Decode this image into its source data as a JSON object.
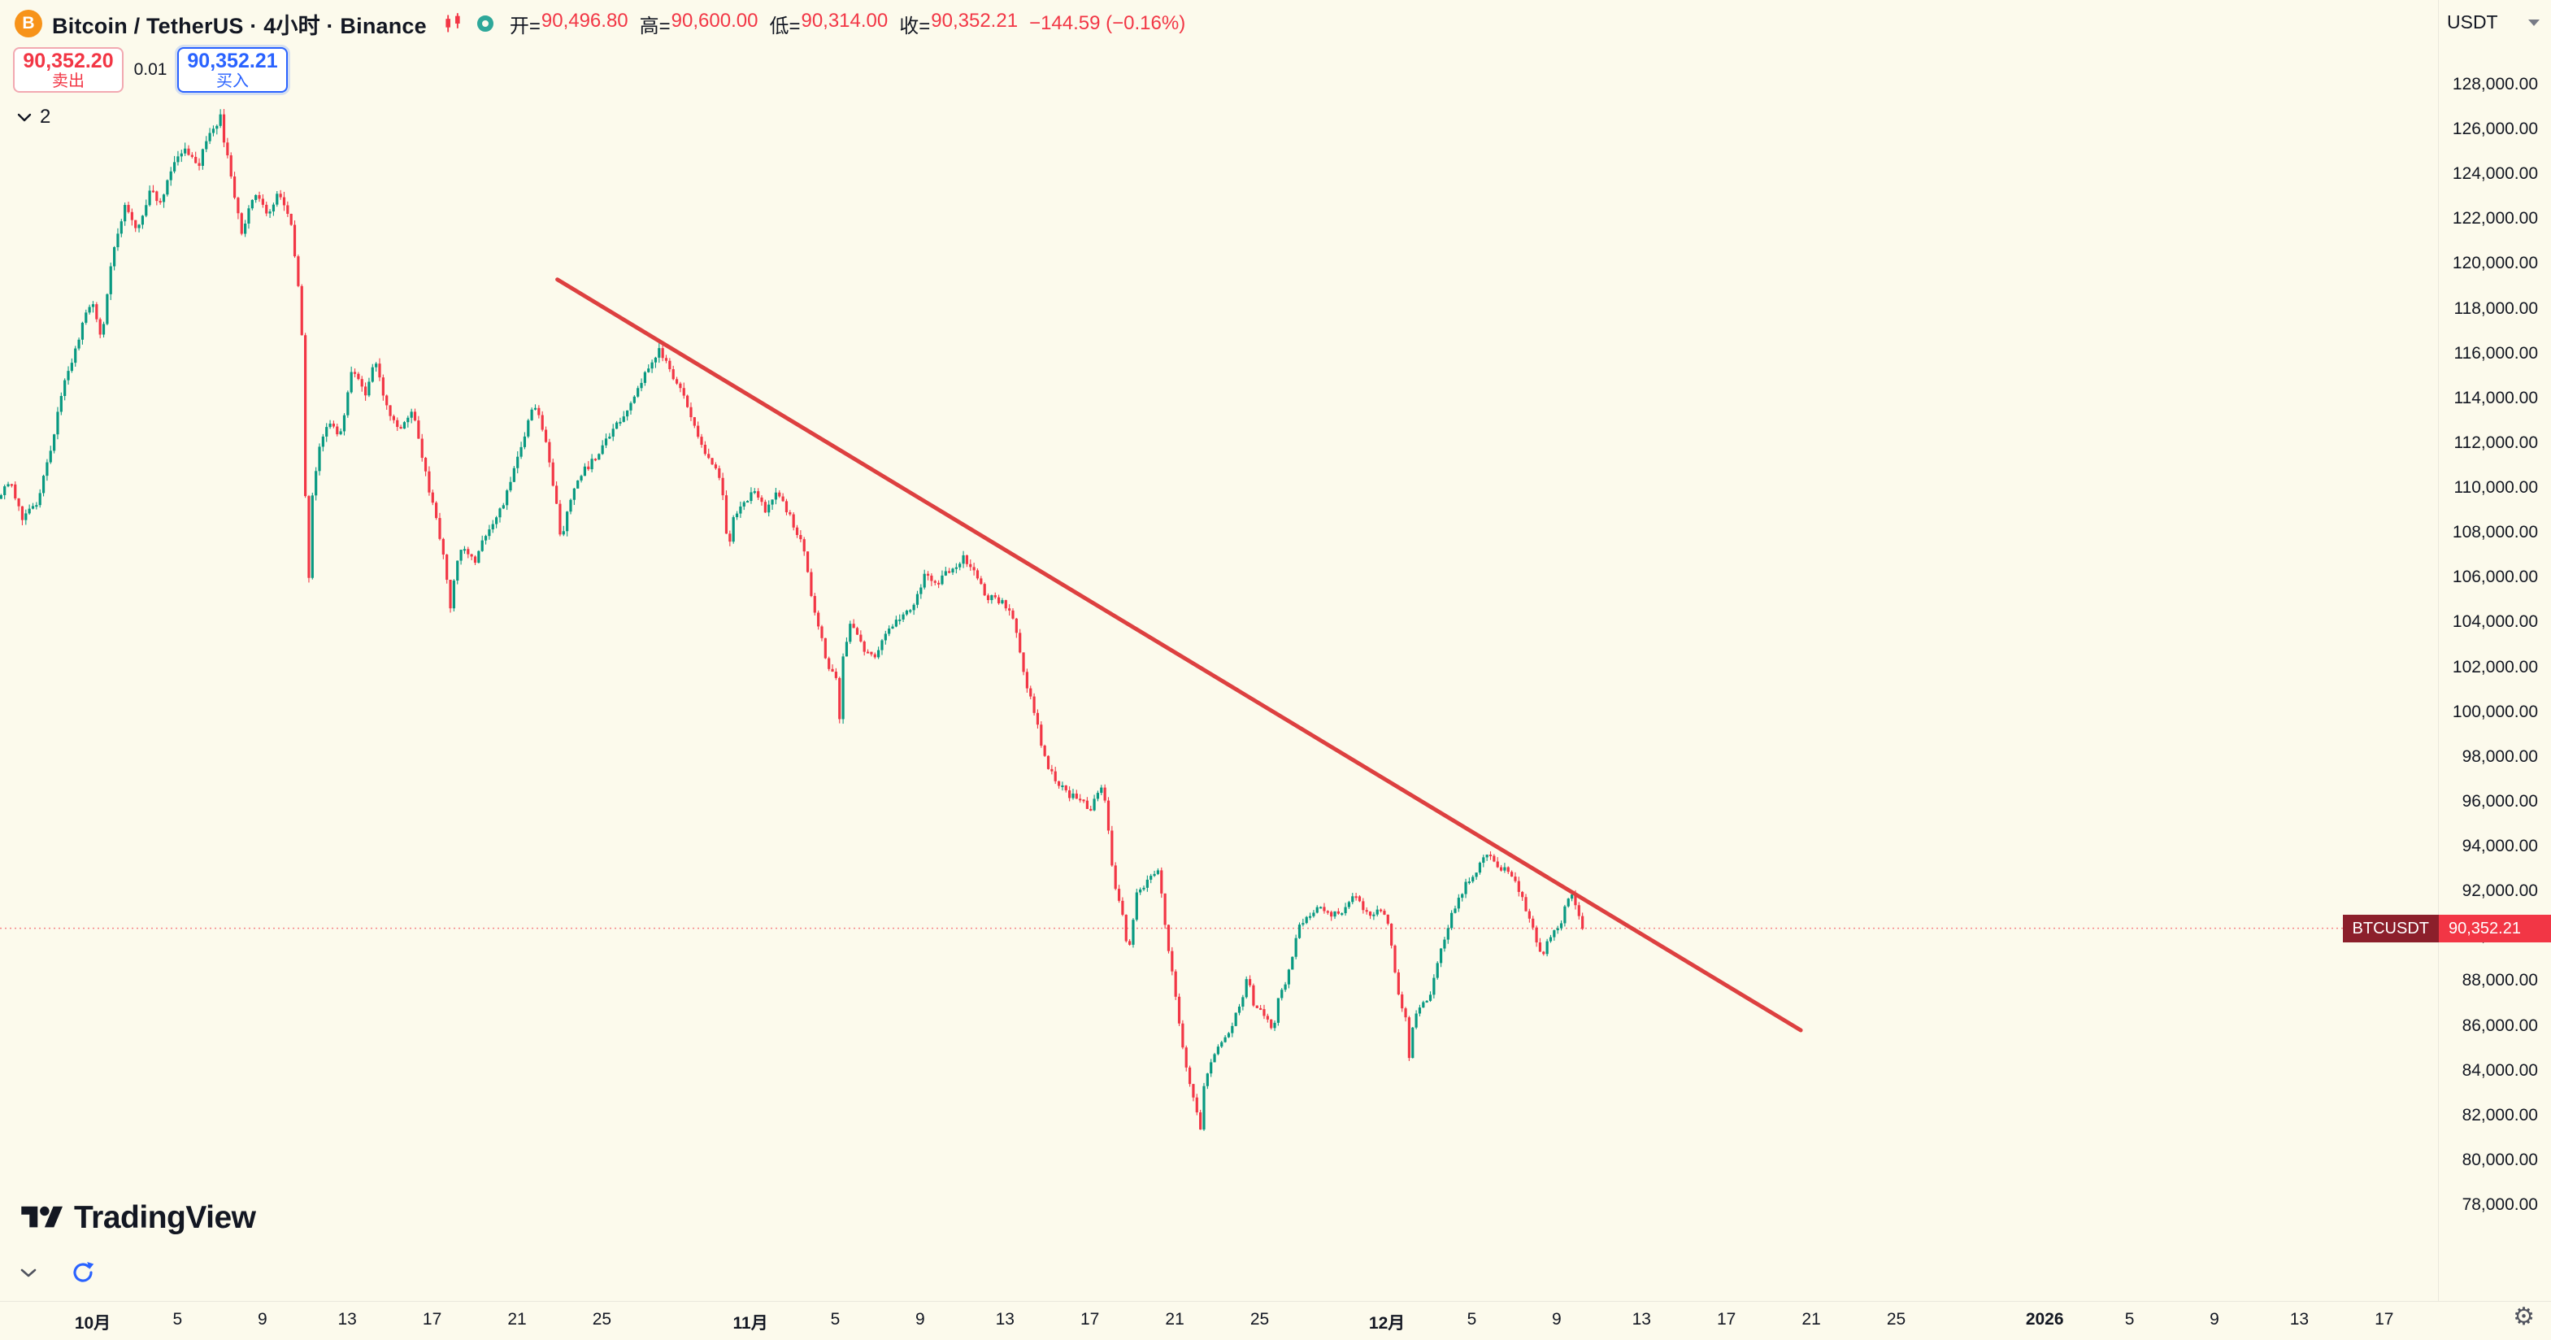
{
  "header": {
    "title": "Bitcoin / TetherUS · 4小时 · Binance",
    "ohlc": {
      "open_label": "开=",
      "open": "90,496.80",
      "high_label": "高=",
      "high": "90,600.00",
      "low_label": "低=",
      "low": "90,314.00",
      "close_label": "收=",
      "close": "90,352.21",
      "change": "−144.59 (−0.16%)"
    },
    "currency": "USDT"
  },
  "order_panel": {
    "sell_price": "90,352.20",
    "sell_label": "卖出",
    "spread": "0.01",
    "buy_price": "90,352.21",
    "buy_label": "买入"
  },
  "tree_toggle": {
    "count": "2"
  },
  "watermark": {
    "brand": "TradingView"
  },
  "price_label": {
    "symbol": "BTCUSDT",
    "price": "90,352.21"
  },
  "chart_data": {
    "type": "candlestick",
    "symbol": "BTCUSDT",
    "interval": "4小时",
    "exchange": "Binance",
    "last_price": 90352.21,
    "open": 90496.8,
    "high": 90600.0,
    "low": 90314.0,
    "close": 90352.21,
    "colors": {
      "up": "#089981",
      "down": "#F23645",
      "trend": "#DD4040",
      "last_line": "#F23645",
      "buy": "#2962FF",
      "sell": "#F23645"
    },
    "price_axis": {
      "min": 78000,
      "max": 128000,
      "step": 2000,
      "ticks": [
        {
          "value": 128000,
          "label": "128,000.00"
        },
        {
          "value": 126000,
          "label": "126,000.00"
        },
        {
          "value": 124000,
          "label": "124,000.00"
        },
        {
          "value": 122000,
          "label": "122,000.00"
        },
        {
          "value": 120000,
          "label": "120,000.00"
        },
        {
          "value": 118000,
          "label": "118,000.00"
        },
        {
          "value": 116000,
          "label": "116,000.00"
        },
        {
          "value": 114000,
          "label": "114,000.00"
        },
        {
          "value": 112000,
          "label": "112,000.00"
        },
        {
          "value": 110000,
          "label": "110,000.00"
        },
        {
          "value": 108000,
          "label": "108,000.00"
        },
        {
          "value": 106000,
          "label": "106,000.00"
        },
        {
          "value": 104000,
          "label": "104,000.00"
        },
        {
          "value": 102000,
          "label": "102,000.00"
        },
        {
          "value": 100000,
          "label": "100,000.00"
        },
        {
          "value": 98000,
          "label": "98,000.00"
        },
        {
          "value": 96000,
          "label": "96,000.00"
        },
        {
          "value": 94000,
          "label": "94,000.00"
        },
        {
          "value": 92000,
          "label": "92,000.00"
        },
        {
          "value": 90000,
          "label": "90,000.00"
        },
        {
          "value": 88000,
          "label": "88,000.00"
        },
        {
          "value": 86000,
          "label": "86,000.00"
        },
        {
          "value": 84000,
          "label": "84,000.00"
        },
        {
          "value": 82000,
          "label": "82,000.00"
        },
        {
          "value": 80000,
          "label": "80,000.00"
        },
        {
          "value": 78000,
          "label": "78,000.00"
        }
      ]
    },
    "time_axis": {
      "ticks": [
        {
          "label": "10月",
          "day": 0,
          "bold": true
        },
        {
          "label": "5",
          "day": 4
        },
        {
          "label": "9",
          "day": 8
        },
        {
          "label": "13",
          "day": 12
        },
        {
          "label": "17",
          "day": 16
        },
        {
          "label": "21",
          "day": 20
        },
        {
          "label": "25",
          "day": 24
        },
        {
          "label": "11月",
          "day": 31,
          "bold": true
        },
        {
          "label": "5",
          "day": 35
        },
        {
          "label": "9",
          "day": 39
        },
        {
          "label": "13",
          "day": 43
        },
        {
          "label": "17",
          "day": 47
        },
        {
          "label": "21",
          "day": 51
        },
        {
          "label": "25",
          "day": 55
        },
        {
          "label": "12月",
          "day": 61,
          "bold": true
        },
        {
          "label": "5",
          "day": 65
        },
        {
          "label": "9",
          "day": 69
        },
        {
          "label": "13",
          "day": 73
        },
        {
          "label": "17",
          "day": 77
        },
        {
          "label": "21",
          "day": 81
        },
        {
          "label": "25",
          "day": 85
        },
        {
          "label": "2026",
          "day": 92,
          "bold": true
        },
        {
          "label": "5",
          "day": 96
        },
        {
          "label": "9",
          "day": 100
        },
        {
          "label": "13",
          "day": 104
        },
        {
          "label": "17",
          "day": 108
        }
      ]
    },
    "day_range": [
      -4.4,
      70.3
    ],
    "candles_per_day": 6,
    "trend_line": {
      "from": [
        21.9,
        119300
      ],
      "to": [
        80.5,
        85800
      ]
    },
    "waypoints": [
      [
        -4.4,
        109600
      ],
      [
        -3.8,
        110400
      ],
      [
        -3.2,
        108600
      ],
      [
        -2.5,
        109300
      ],
      [
        -1.9,
        111800
      ],
      [
        -1.2,
        114800
      ],
      [
        -0.5,
        116900
      ],
      [
        0,
        118400
      ],
      [
        0.5,
        116800
      ],
      [
        1.0,
        120200
      ],
      [
        1.6,
        122600
      ],
      [
        2.2,
        121300
      ],
      [
        2.8,
        123500
      ],
      [
        3.3,
        122600
      ],
      [
        3.9,
        124600
      ],
      [
        4.4,
        125300
      ],
      [
        5.0,
        124200
      ],
      [
        5.6,
        125900
      ],
      [
        6.1,
        126500
      ],
      [
        6.6,
        123800
      ],
      [
        7.1,
        121400
      ],
      [
        7.7,
        123300
      ],
      [
        8.3,
        122200
      ],
      [
        8.8,
        123100
      ],
      [
        9.4,
        121900
      ],
      [
        9.9,
        118200
      ],
      [
        10.05,
        113500
      ],
      [
        10.2,
        103200
      ],
      [
        10.35,
        108800
      ],
      [
        10.7,
        111500
      ],
      [
        11.2,
        113200
      ],
      [
        11.7,
        112000
      ],
      [
        12.3,
        115400
      ],
      [
        12.9,
        114100
      ],
      [
        13.4,
        115800
      ],
      [
        14.0,
        113400
      ],
      [
        14.6,
        112600
      ],
      [
        15.2,
        113500
      ],
      [
        15.7,
        110900
      ],
      [
        16.3,
        108400
      ],
      [
        16.85,
        105700
      ],
      [
        17.0,
        104100
      ],
      [
        17.15,
        106500
      ],
      [
        17.5,
        107200
      ],
      [
        18.1,
        106700
      ],
      [
        18.6,
        108000
      ],
      [
        19.2,
        108700
      ],
      [
        19.8,
        110400
      ],
      [
        20.3,
        111900
      ],
      [
        20.9,
        113900
      ],
      [
        21.5,
        111700
      ],
      [
        22.0,
        108800
      ],
      [
        22.15,
        107400
      ],
      [
        22.6,
        109600
      ],
      [
        23.2,
        110800
      ],
      [
        23.8,
        111300
      ],
      [
        24.4,
        112400
      ],
      [
        25.1,
        113300
      ],
      [
        25.7,
        114300
      ],
      [
        26.3,
        115300
      ],
      [
        26.8,
        116200
      ],
      [
        27.4,
        114900
      ],
      [
        27.9,
        114200
      ],
      [
        28.4,
        113000
      ],
      [
        29.0,
        111400
      ],
      [
        29.7,
        110400
      ],
      [
        30.05,
        107000
      ],
      [
        30.2,
        108500
      ],
      [
        30.7,
        109200
      ],
      [
        31.2,
        109800
      ],
      [
        31.8,
        109000
      ],
      [
        32.4,
        109900
      ],
      [
        33.0,
        108600
      ],
      [
        33.6,
        107200
      ],
      [
        34.1,
        104500
      ],
      [
        34.7,
        102200
      ],
      [
        35.15,
        101300
      ],
      [
        35.3,
        99400
      ],
      [
        35.45,
        102600
      ],
      [
        35.8,
        103900
      ],
      [
        36.3,
        103000
      ],
      [
        36.9,
        102300
      ],
      [
        37.5,
        103500
      ],
      [
        38.1,
        104200
      ],
      [
        38.7,
        104700
      ],
      [
        39.3,
        106100
      ],
      [
        39.9,
        105800
      ],
      [
        40.5,
        106300
      ],
      [
        41.1,
        106900
      ],
      [
        41.7,
        106200
      ],
      [
        42.2,
        105100
      ],
      [
        42.8,
        105000
      ],
      [
        43.4,
        104500
      ],
      [
        43.9,
        102000
      ],
      [
        44.4,
        100200
      ],
      [
        45.0,
        97800
      ],
      [
        45.5,
        96900
      ],
      [
        46.1,
        96300
      ],
      [
        46.6,
        96200
      ],
      [
        47.1,
        95600
      ],
      [
        47.7,
        96800
      ],
      [
        48.2,
        92600
      ],
      [
        48.7,
        90600
      ],
      [
        48.85,
        89000
      ],
      [
        49.3,
        91900
      ],
      [
        49.8,
        92400
      ],
      [
        50.3,
        92900
      ],
      [
        50.7,
        90000
      ],
      [
        51.2,
        86800
      ],
      [
        51.7,
        83600
      ],
      [
        52.1,
        82300
      ],
      [
        52.25,
        80900
      ],
      [
        52.45,
        83200
      ],
      [
        52.7,
        84300
      ],
      [
        53.2,
        85200
      ],
      [
        53.7,
        85900
      ],
      [
        54.3,
        87300
      ],
      [
        54.5,
        88300
      ],
      [
        54.8,
        86900
      ],
      [
        55.3,
        86500
      ],
      [
        55.75,
        85800
      ],
      [
        55.95,
        87300
      ],
      [
        56.4,
        88100
      ],
      [
        56.9,
        90300
      ],
      [
        57.5,
        91000
      ],
      [
        58.0,
        91300
      ],
      [
        58.5,
        90900
      ],
      [
        59.1,
        91200
      ],
      [
        59.6,
        91800
      ],
      [
        60.2,
        90900
      ],
      [
        60.7,
        91100
      ],
      [
        61.1,
        90800
      ],
      [
        61.6,
        87600
      ],
      [
        62.05,
        86000
      ],
      [
        62.15,
        84300
      ],
      [
        62.35,
        86400
      ],
      [
        63.1,
        87400
      ],
      [
        63.7,
        89600
      ],
      [
        64.2,
        91100
      ],
      [
        64.8,
        92300
      ],
      [
        65.3,
        92900
      ],
      [
        65.8,
        93700
      ],
      [
        66.4,
        93100
      ],
      [
        66.9,
        92800
      ],
      [
        67.4,
        91800
      ],
      [
        68.0,
        90300
      ],
      [
        68.35,
        89000
      ],
      [
        68.8,
        90000
      ],
      [
        69.3,
        90700
      ],
      [
        69.7,
        92000
      ],
      [
        70.05,
        91100
      ],
      [
        70.3,
        90352
      ]
    ]
  }
}
